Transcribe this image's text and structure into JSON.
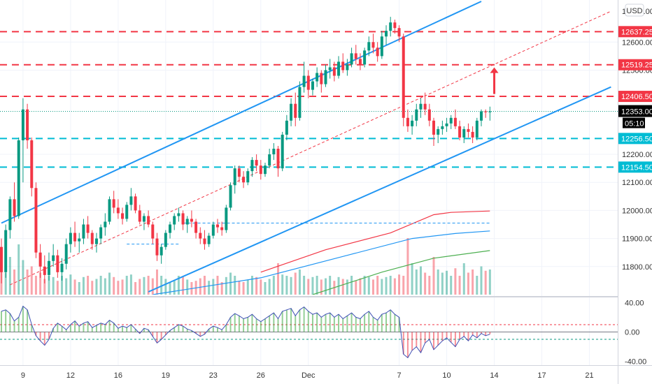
{
  "chart_data": {
    "type": "candlestick",
    "currency_label": "USD",
    "price_axis": {
      "ylim": [
        11700,
        12750
      ],
      "ticks": [
        11800,
        11900,
        12000,
        12100,
        12200,
        12500,
        12600
      ],
      "tick_labels": [
        "11800.00",
        "11900.00",
        "12000.00",
        "12100.00",
        "12200.00",
        "12500.00",
        "12600.00"
      ],
      "top_partial_label": "12700.00"
    },
    "indicator_axis": {
      "ylim": [
        -45,
        45
      ],
      "ticks": [
        40,
        0,
        -40
      ],
      "tick_labels": [
        "40.00",
        "0.00",
        "-40.00"
      ]
    },
    "x_axis": {
      "labels": [
        {
          "label": "9",
          "bar": 5
        },
        {
          "label": "12",
          "bar": 16
        },
        {
          "label": "16",
          "bar": 27
        },
        {
          "label": "19",
          "bar": 38
        },
        {
          "label": "23",
          "bar": 49
        },
        {
          "label": "26",
          "bar": 60
        },
        {
          "label": "Dec",
          "bar": 71
        },
        {
          "label": "7",
          "bar": 92
        },
        {
          "label": "10",
          "bar": 103
        },
        {
          "label": "14",
          "bar": 114
        },
        {
          "label": "17",
          "bar": 125
        },
        {
          "label": "21",
          "bar": 136
        }
      ],
      "bar_count": 114
    },
    "horizontal_levels": [
      {
        "label": "12637.25",
        "value": 12637.25,
        "color": "#f23645",
        "style": "dashed"
      },
      {
        "label": "12519.25",
        "value": 12519.25,
        "color": "#f23645",
        "style": "dashed"
      },
      {
        "label": "12406.50",
        "value": 12406.5,
        "color": "#f23645",
        "style": "dashed"
      },
      {
        "label": "12256.50",
        "value": 12256.5,
        "color": "#00bcd4",
        "style": "dashed"
      },
      {
        "label": "12154.50",
        "value": 12154.5,
        "color": "#00bcd4",
        "style": "dashed"
      }
    ],
    "last_price": {
      "label": "12353.00",
      "value": 12353,
      "countdown": "05:10",
      "color": "#089981"
    },
    "trendlines": [
      {
        "name": "channel-upper",
        "color": "#2196f3",
        "from": {
          "bar": 0,
          "price": 11955
        },
        "to": {
          "bar": 111,
          "price": 12745
        }
      },
      {
        "name": "channel-lower",
        "color": "#2196f3",
        "from": {
          "bar": 34,
          "price": 11710
        },
        "to": {
          "bar": 141,
          "price": 12440
        }
      },
      {
        "name": "channel-mid",
        "color": "#f23645",
        "dashed": true,
        "from": {
          "bar": 2,
          "price": 11735
        },
        "to": {
          "bar": 141,
          "price": 12710
        }
      },
      {
        "name": "short-level-1",
        "color": "#2196f3",
        "dashed": true,
        "from": {
          "bar": 42,
          "price": 11955
        },
        "to": {
          "bar": 113,
          "price": 11955
        }
      },
      {
        "name": "short-level-2",
        "color": "#2196f3",
        "dashed": true,
        "from": {
          "bar": 29,
          "price": 11880
        },
        "to": {
          "bar": 41,
          "price": 11880
        }
      }
    ],
    "arrow": {
      "color": "#f23645",
      "bar": 114,
      "from": 12415,
      "to": 12510
    },
    "moving_averages": [
      {
        "name": "ma-red",
        "color": "#f23645",
        "points": [
          [
            60,
            11780
          ],
          [
            75,
            11860
          ],
          [
            90,
            11920
          ],
          [
            100,
            11985
          ],
          [
            104,
            11993
          ],
          [
            113,
            11998
          ]
        ]
      },
      {
        "name": "ma-blue",
        "color": "#2196f3",
        "points": [
          [
            35,
            11700
          ],
          [
            60,
            11760
          ],
          [
            80,
            11840
          ],
          [
            95,
            11900
          ],
          [
            105,
            11918
          ],
          [
            113,
            11927
          ]
        ]
      },
      {
        "name": "ma-green",
        "color": "#4caf50",
        "points": [
          [
            72,
            11700
          ],
          [
            88,
            11780
          ],
          [
            100,
            11830
          ],
          [
            113,
            11857
          ]
        ]
      }
    ],
    "candles": [
      [
        11870,
        11900,
        11740,
        11780
      ],
      [
        11780,
        11950,
        11760,
        11930
      ],
      [
        11930,
        12050,
        11900,
        12040
      ],
      [
        12040,
        12100,
        11960,
        11980
      ],
      [
        11980,
        12260,
        11970,
        12250
      ],
      [
        12250,
        12400,
        12100,
        12360
      ],
      [
        12360,
        12380,
        12220,
        12250
      ],
      [
        12250,
        12260,
        12050,
        12080
      ],
      [
        12080,
        12100,
        11830,
        11850
      ],
      [
        11850,
        11880,
        11760,
        11800
      ],
      [
        11800,
        11840,
        11740,
        11770
      ],
      [
        11770,
        11850,
        11750,
        11820
      ],
      [
        11820,
        11880,
        11800,
        11840
      ],
      [
        11840,
        11860,
        11760,
        11780
      ],
      [
        11780,
        11830,
        11750,
        11810
      ],
      [
        11810,
        11900,
        11790,
        11880
      ],
      [
        11880,
        11940,
        11850,
        11920
      ],
      [
        11920,
        11960,
        11870,
        11890
      ],
      [
        11890,
        11920,
        11850,
        11900
      ],
      [
        11900,
        11970,
        11880,
        11950
      ],
      [
        11950,
        11980,
        11900,
        11920
      ],
      [
        11920,
        11930,
        11860,
        11880
      ],
      [
        11880,
        11920,
        11850,
        11900
      ],
      [
        11900,
        11950,
        11880,
        11940
      ],
      [
        11940,
        11990,
        11910,
        11960
      ],
      [
        11960,
        12050,
        11950,
        12040
      ],
      [
        12040,
        12070,
        11990,
        12010
      ],
      [
        12010,
        12040,
        11970,
        11990
      ],
      [
        11990,
        12010,
        11950,
        11970
      ],
      [
        11970,
        12030,
        11960,
        12020
      ],
      [
        12020,
        12080,
        12000,
        12050
      ],
      [
        12050,
        12060,
        11990,
        12000
      ],
      [
        12000,
        12020,
        11950,
        11960
      ],
      [
        11960,
        11990,
        11930,
        11980
      ],
      [
        11980,
        12000,
        11940,
        11950
      ],
      [
        11950,
        11960,
        11880,
        11900
      ],
      [
        11900,
        11920,
        11820,
        11840
      ],
      [
        11840,
        11880,
        11810,
        11870
      ],
      [
        11870,
        11930,
        11860,
        11920
      ],
      [
        11920,
        11960,
        11900,
        11950
      ],
      [
        11950,
        11990,
        11930,
        11980
      ],
      [
        11980,
        12010,
        11960,
        11990
      ],
      [
        11990,
        12000,
        11930,
        11950
      ],
      [
        11950,
        11980,
        11920,
        11970
      ],
      [
        11970,
        12000,
        11940,
        11960
      ],
      [
        11960,
        11970,
        11900,
        11920
      ],
      [
        11920,
        11940,
        11880,
        11900
      ],
      [
        11900,
        11930,
        11860,
        11880
      ],
      [
        11880,
        11920,
        11870,
        11910
      ],
      [
        11910,
        11960,
        11900,
        11950
      ],
      [
        11950,
        11970,
        11920,
        11940
      ],
      [
        11940,
        11960,
        11910,
        11930
      ],
      [
        11930,
        12020,
        11920,
        12010
      ],
      [
        12010,
        12100,
        12000,
        12090
      ],
      [
        12090,
        12160,
        12060,
        12150
      ],
      [
        12150,
        12160,
        12100,
        12120
      ],
      [
        12120,
        12140,
        12080,
        12100
      ],
      [
        12100,
        12150,
        12090,
        12140
      ],
      [
        12140,
        12190,
        12120,
        12180
      ],
      [
        12180,
        12200,
        12140,
        12160
      ],
      [
        12160,
        12180,
        12110,
        12130
      ],
      [
        12130,
        12170,
        12120,
        12160
      ],
      [
        12160,
        12220,
        12150,
        12200
      ],
      [
        12200,
        12240,
        12180,
        12220
      ],
      [
        12220,
        12230,
        12120,
        12150
      ],
      [
        12150,
        12280,
        12140,
        12270
      ],
      [
        12270,
        12340,
        12250,
        12320
      ],
      [
        12320,
        12400,
        12300,
        12380
      ],
      [
        12380,
        12420,
        12300,
        12330
      ],
      [
        12330,
        12460,
        12320,
        12440
      ],
      [
        12440,
        12530,
        12420,
        12480
      ],
      [
        12480,
        12500,
        12400,
        12430
      ],
      [
        12430,
        12470,
        12410,
        12460
      ],
      [
        12460,
        12510,
        12440,
        12490
      ],
      [
        12490,
        12500,
        12420,
        12450
      ],
      [
        12450,
        12520,
        12440,
        12500
      ],
      [
        12500,
        12540,
        12470,
        12510
      ],
      [
        12510,
        12530,
        12460,
        12480
      ],
      [
        12480,
        12550,
        12470,
        12530
      ],
      [
        12530,
        12560,
        12490,
        12500
      ],
      [
        12500,
        12540,
        12480,
        12520
      ],
      [
        12520,
        12580,
        12510,
        12560
      ],
      [
        12560,
        12590,
        12520,
        12540
      ],
      [
        12540,
        12560,
        12500,
        12520
      ],
      [
        12520,
        12580,
        12510,
        12570
      ],
      [
        12570,
        12620,
        12550,
        12600
      ],
      [
        12600,
        12630,
        12560,
        12580
      ],
      [
        12580,
        12600,
        12530,
        12550
      ],
      [
        12550,
        12640,
        12540,
        12620
      ],
      [
        12620,
        12660,
        12590,
        12640
      ],
      [
        12640,
        12690,
        12620,
        12670
      ],
      [
        12670,
        12680,
        12630,
        12650
      ],
      [
        12650,
        12660,
        12600,
        12620
      ],
      [
        12620,
        12630,
        12300,
        12330
      ],
      [
        12330,
        12360,
        12280,
        12300
      ],
      [
        12300,
        12340,
        12270,
        12320
      ],
      [
        12320,
        12380,
        12300,
        12360
      ],
      [
        12360,
        12400,
        12330,
        12380
      ],
      [
        12380,
        12420,
        12340,
        12360
      ],
      [
        12360,
        12380,
        12300,
        12320
      ],
      [
        12320,
        12330,
        12230,
        12270
      ],
      [
        12270,
        12300,
        12240,
        12290
      ],
      [
        12290,
        12320,
        12270,
        12300
      ],
      [
        12300,
        12330,
        12280,
        12310
      ],
      [
        12310,
        12340,
        12290,
        12330
      ],
      [
        12330,
        12360,
        12290,
        12300
      ],
      [
        12300,
        12320,
        12250,
        12260
      ],
      [
        12260,
        12300,
        12240,
        12290
      ],
      [
        12290,
        12310,
        12260,
        12280
      ],
      [
        12280,
        12300,
        12240,
        12260
      ],
      [
        12260,
        12330,
        12250,
        12320
      ],
      [
        12320,
        12360,
        12300,
        12353
      ],
      [
        12353,
        12360,
        12330,
        12350
      ],
      [
        12350,
        12370,
        12320,
        12353
      ]
    ],
    "volume_relative": [
      0.5,
      0.35,
      0.6,
      0.4,
      0.8,
      0.55,
      0.4,
      0.45,
      0.3,
      0.35,
      0.25,
      0.3,
      0.28,
      0.22,
      0.3,
      0.26,
      0.32,
      0.24,
      0.2,
      0.28,
      0.3,
      0.22,
      0.25,
      0.3,
      0.26,
      0.35,
      0.28,
      0.22,
      0.24,
      0.3,
      0.32,
      0.2,
      0.25,
      0.28,
      0.3,
      0.26,
      0.4,
      0.3,
      0.25,
      0.2,
      0.22,
      0.3,
      0.28,
      0.24,
      0.2,
      0.22,
      0.26,
      0.3,
      0.22,
      0.25,
      0.3,
      0.2,
      0.28,
      0.35,
      0.3,
      0.22,
      0.2,
      0.24,
      0.3,
      0.28,
      0.24,
      0.2,
      0.25,
      0.3,
      0.5,
      0.32,
      0.3,
      0.28,
      0.35,
      0.4,
      0.3,
      0.25,
      0.28,
      0.3,
      0.24,
      0.26,
      0.3,
      0.22,
      0.28,
      0.25,
      0.24,
      0.3,
      0.22,
      0.26,
      0.3,
      0.28,
      0.24,
      0.3,
      0.25,
      0.28,
      0.3,
      0.26,
      0.32,
      0.3,
      0.9,
      0.5,
      0.4,
      0.45,
      0.35,
      0.3,
      0.6,
      0.4,
      0.35,
      0.38,
      0.3,
      0.42,
      0.3,
      0.5,
      0.35,
      0.4,
      0.3,
      0.45,
      0.38,
      0.4
    ],
    "oscillator": [
      28,
      30,
      25,
      15,
      20,
      35,
      30,
      10,
      -5,
      -12,
      -18,
      -10,
      5,
      12,
      8,
      3,
      10,
      15,
      8,
      12,
      14,
      6,
      9,
      12,
      10,
      16,
      12,
      5,
      8,
      6,
      10,
      4,
      -2,
      5,
      3,
      -6,
      -15,
      -10,
      -4,
      2,
      6,
      10,
      8,
      4,
      2,
      -2,
      -6,
      -3,
      4,
      8,
      6,
      3,
      10,
      20,
      25,
      22,
      18,
      20,
      24,
      18,
      14,
      18,
      22,
      26,
      18,
      28,
      30,
      32,
      22,
      30,
      34,
      28,
      24,
      26,
      20,
      24,
      26,
      20,
      24,
      18,
      22,
      26,
      20,
      18,
      24,
      28,
      20,
      16,
      24,
      26,
      30,
      24,
      20,
      -30,
      -35,
      -25,
      -20,
      -28,
      -15,
      -10,
      -24,
      -18,
      -12,
      -8,
      -14,
      -20,
      -10,
      -6,
      -12,
      -4,
      -8,
      -2,
      -5,
      -3
    ]
  }
}
